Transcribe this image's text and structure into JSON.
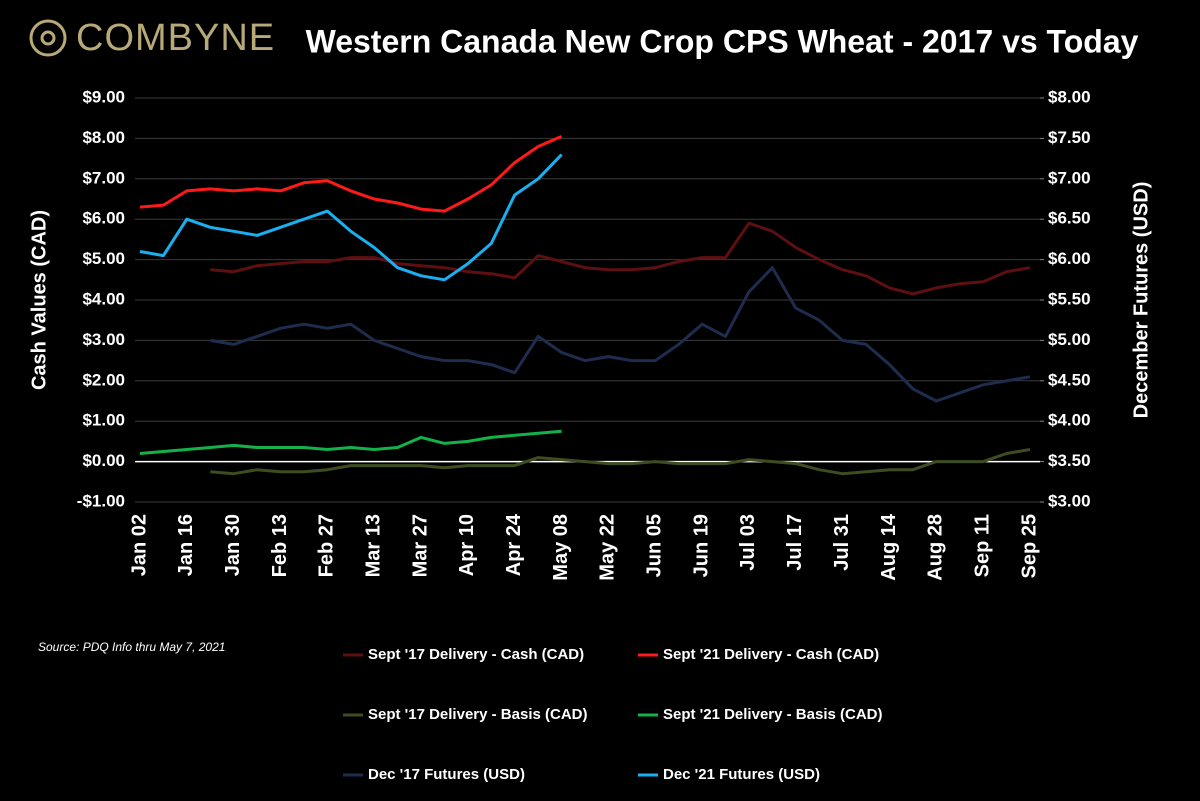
{
  "brand": "COMBYNE",
  "chart_data": {
    "type": "line",
    "title": "Western Canada New Crop CPS Wheat - 2017 vs Today",
    "ylabel": "Cash Values (CAD)",
    "y2label": "December Futures (USD)",
    "source": "Source: PDQ Info thru May 7, 2021",
    "categories": [
      "Jan 02",
      null,
      "Jan 16",
      null,
      "Jan 30",
      null,
      "Feb 13",
      null,
      "Feb 27",
      null,
      "Mar 13",
      null,
      "Mar 27",
      null,
      "Apr 10",
      null,
      "Apr 24",
      null,
      "May 08",
      null,
      "May 22",
      null,
      "Jun 05",
      null,
      "Jun 19",
      null,
      "Jul 03",
      null,
      "Jul 17",
      null,
      "Jul 31",
      null,
      "Aug 14",
      null,
      "Aug 28",
      null,
      "Sep 11",
      null,
      "Sep 25"
    ],
    "ylim": [
      -1,
      9
    ],
    "yticks": [
      {
        "value": -1,
        "label": "-$1.00"
      },
      {
        "value": 0,
        "label": "$0.00"
      },
      {
        "value": 1,
        "label": "$1.00"
      },
      {
        "value": 2,
        "label": "$2.00"
      },
      {
        "value": 3,
        "label": "$3.00"
      },
      {
        "value": 4,
        "label": "$4.00"
      },
      {
        "value": 5,
        "label": "$5.00"
      },
      {
        "value": 6,
        "label": "$6.00"
      },
      {
        "value": 7,
        "label": "$7.00"
      },
      {
        "value": 8,
        "label": "$8.00"
      },
      {
        "value": 9,
        "label": "$9.00"
      }
    ],
    "y2lim": [
      3,
      8
    ],
    "y2ticks": [
      {
        "value": 3,
        "label": "$3.00"
      },
      {
        "value": 3.5,
        "label": "$3.50"
      },
      {
        "value": 4,
        "label": "$4.00"
      },
      {
        "value": 4.5,
        "label": "$4.50"
      },
      {
        "value": 5,
        "label": "$5.00"
      },
      {
        "value": 5.5,
        "label": "$5.50"
      },
      {
        "value": 6,
        "label": "$6.00"
      },
      {
        "value": 6.5,
        "label": "$6.50"
      },
      {
        "value": 7,
        "label": "$7.00"
      },
      {
        "value": 7.5,
        "label": "$7.50"
      },
      {
        "value": 8,
        "label": "$8.00"
      }
    ],
    "grid": true,
    "series": [
      {
        "name": "Sept '17 Delivery - Cash (CAD)",
        "color": "#5e0f10",
        "values": [
          null,
          null,
          null,
          4.75,
          4.7,
          4.85,
          4.9,
          4.95,
          4.95,
          5.05,
          5.05,
          4.9,
          4.85,
          4.8,
          4.7,
          4.65,
          4.55,
          5.1,
          4.95,
          4.8,
          4.75,
          4.75,
          4.8,
          4.95,
          5.05,
          5.05,
          5.9,
          5.7,
          5.3,
          5.0,
          4.75,
          4.6,
          4.3,
          4.15,
          4.3,
          4.4,
          4.45,
          4.7,
          4.8
        ]
      },
      {
        "name": "Sept '21 Delivery - Cash (CAD)",
        "color": "#ff1a1a",
        "values": [
          6.3,
          6.35,
          6.7,
          6.75,
          6.7,
          6.75,
          6.7,
          6.9,
          6.95,
          6.7,
          6.5,
          6.4,
          6.25,
          6.2,
          6.5,
          6.85,
          7.4,
          7.8,
          8.05,
          null,
          null,
          null,
          null,
          null,
          null,
          null,
          null,
          null,
          null,
          null,
          null,
          null,
          null,
          null,
          null,
          null,
          null,
          null,
          null
        ]
      },
      {
        "name": "Sept '17 Delivery - Basis (CAD)",
        "color": "#3d4d20",
        "values": [
          null,
          null,
          null,
          -0.25,
          -0.3,
          -0.2,
          -0.25,
          -0.25,
          -0.2,
          -0.1,
          -0.1,
          -0.1,
          -0.1,
          -0.15,
          -0.1,
          -0.1,
          -0.1,
          0.1,
          0.05,
          0.0,
          -0.05,
          -0.05,
          0.0,
          -0.05,
          -0.05,
          -0.05,
          0.05,
          0.0,
          -0.05,
          -0.2,
          -0.3,
          -0.25,
          -0.2,
          -0.2,
          0.0,
          0.0,
          0.0,
          0.2,
          0.3
        ]
      },
      {
        "name": "Sept '21 Delivery - Basis (CAD)",
        "color": "#14b04a",
        "values": [
          0.2,
          0.25,
          0.3,
          0.35,
          0.4,
          0.35,
          0.35,
          0.35,
          0.3,
          0.35,
          0.3,
          0.35,
          0.6,
          0.45,
          0.5,
          0.6,
          0.65,
          0.7,
          0.75,
          null,
          null,
          null,
          null,
          null,
          null,
          null,
          null,
          null,
          null,
          null,
          null,
          null,
          null,
          null,
          null,
          null,
          null,
          null,
          null
        ]
      },
      {
        "name": "Dec '17 Futures (USD)",
        "color": "#1e2c4e",
        "axis": "y2",
        "values": [
          null,
          null,
          null,
          5.0,
          4.95,
          5.05,
          5.15,
          5.2,
          5.15,
          5.2,
          5.0,
          4.9,
          4.8,
          4.75,
          4.75,
          4.7,
          4.6,
          5.05,
          4.85,
          4.75,
          4.8,
          4.75,
          4.75,
          4.95,
          5.2,
          5.05,
          5.6,
          5.9,
          5.4,
          5.25,
          5.0,
          4.95,
          4.7,
          4.4,
          4.25,
          4.35,
          4.45,
          4.5,
          4.55
        ]
      },
      {
        "name": "Dec '21 Futures (USD)",
        "color": "#1aaff0",
        "axis": "y2",
        "values": [
          6.1,
          6.05,
          6.5,
          6.4,
          6.35,
          6.3,
          6.4,
          6.5,
          6.6,
          6.35,
          6.15,
          5.9,
          5.8,
          5.75,
          5.95,
          6.2,
          6.8,
          7.0,
          7.3,
          null,
          null,
          null,
          null,
          null,
          null,
          null,
          null,
          null,
          null,
          null,
          null,
          null,
          null,
          null,
          null,
          null,
          null,
          null,
          null
        ]
      }
    ]
  }
}
